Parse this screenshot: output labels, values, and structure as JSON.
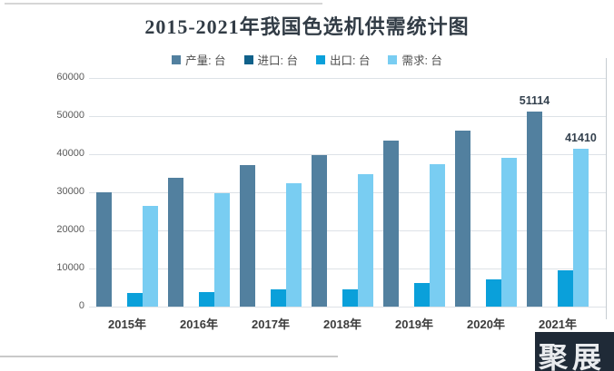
{
  "title": "2015-2021年我国色选机供需统计图",
  "watermark_text": "聚展",
  "colors": {
    "grid": "#dde2e7",
    "plot_border": "#c6ccd2",
    "axis_text": "#595959",
    "title_text": "#323c46",
    "data_label_text": "#34414e"
  },
  "chart_data": {
    "type": "bar",
    "title": "2015-2021年我国色选机供需统计图",
    "categories": [
      "2015年",
      "2016年",
      "2017年",
      "2018年",
      "2019年",
      "2020年",
      "2021年"
    ],
    "series": [
      {
        "key": "production",
        "name": "产量: 台",
        "color": "#52809f",
        "values": [
          30000,
          33700,
          37100,
          39700,
          43600,
          46300,
          51114
        ]
      },
      {
        "key": "import",
        "name": "进口: 台",
        "color": "#10618a",
        "values": [
          0,
          0,
          0,
          0,
          0,
          0,
          0
        ]
      },
      {
        "key": "export",
        "name": "出口: 台",
        "color": "#0aa0da",
        "values": [
          3500,
          3900,
          4600,
          4600,
          6200,
          7200,
          9500
        ]
      },
      {
        "key": "demand",
        "name": "需求: 台",
        "color": "#79cdf2",
        "values": [
          26500,
          29800,
          32400,
          34800,
          37300,
          39000,
          41410
        ]
      }
    ],
    "data_labels": [
      {
        "series": 0,
        "index": 6,
        "text": "51114"
      },
      {
        "series": 3,
        "index": 6,
        "text": "41410"
      }
    ],
    "ylim": [
      0,
      60000
    ],
    "ytick_interval": 10000,
    "yticks": [
      "60000",
      "50000",
      "40000",
      "30000",
      "20000",
      "10000",
      "0"
    ],
    "grid": true,
    "legend_position": "top",
    "unit": "台"
  }
}
